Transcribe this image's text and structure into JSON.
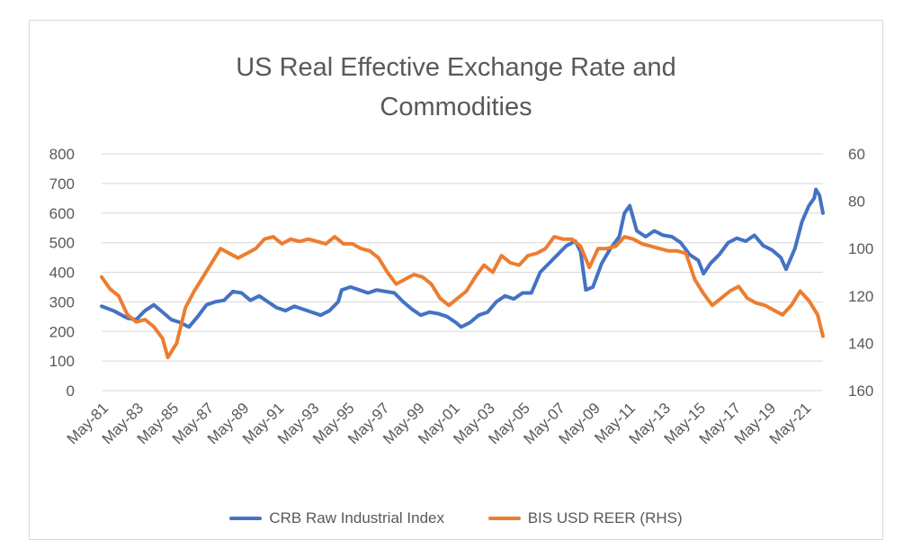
{
  "chart_data": {
    "type": "line",
    "title_lines": [
      "US Real Effective Exchange Rate and",
      "Commodities"
    ],
    "x_tick_labels": [
      "May-81",
      "May-83",
      "May-85",
      "May-87",
      "May-89",
      "May-91",
      "May-93",
      "May-95",
      "May-97",
      "May-99",
      "May-01",
      "May-03",
      "May-05",
      "May-07",
      "May-09",
      "May-11",
      "May-13",
      "May-15",
      "May-17",
      "May-19",
      "May-21"
    ],
    "x_range": [
      1981.33,
      2022.4
    ],
    "y_left": {
      "ticks": [
        0,
        100,
        200,
        300,
        400,
        500,
        600,
        700,
        800
      ],
      "range": [
        0,
        800
      ]
    },
    "y_right": {
      "ticks": [
        60,
        80,
        100,
        120,
        140,
        160
      ],
      "range": [
        60,
        160
      ],
      "inverted": true
    },
    "series": [
      {
        "name": "CRB Raw Industrial Index",
        "color": "#4472c4",
        "axis": "left",
        "x": [
          1981.33,
          1982.0,
          1982.8,
          1983.3,
          1983.8,
          1984.3,
          1984.8,
          1985.3,
          1985.8,
          1986.3,
          1986.8,
          1987.3,
          1987.8,
          1988.3,
          1988.8,
          1989.3,
          1989.8,
          1990.3,
          1990.8,
          1991.3,
          1991.8,
          1992.3,
          1992.8,
          1993.3,
          1993.8,
          1994.3,
          1994.8,
          1995.0,
          1995.5,
          1996.0,
          1996.5,
          1997.0,
          1997.5,
          1998.0,
          1998.5,
          1999.0,
          1999.5,
          2000.0,
          2000.5,
          2001.0,
          2001.5,
          2001.8,
          2002.3,
          2002.8,
          2003.3,
          2003.8,
          2004.3,
          2004.8,
          2005.3,
          2005.8,
          2006.3,
          2006.8,
          2007.3,
          2007.8,
          2008.3,
          2008.6,
          2008.9,
          2009.3,
          2009.8,
          2010.3,
          2010.8,
          2011.1,
          2011.4,
          2011.8,
          2012.3,
          2012.8,
          2013.3,
          2013.8,
          2014.3,
          2014.8,
          2015.3,
          2015.6,
          2016.0,
          2016.5,
          2017.0,
          2017.5,
          2018.0,
          2018.5,
          2019.0,
          2019.5,
          2020.0,
          2020.3,
          2020.8,
          2021.2,
          2021.6,
          2021.9,
          2022.0,
          2022.2,
          2022.4
        ],
        "values": [
          285,
          270,
          245,
          240,
          270,
          290,
          265,
          240,
          230,
          215,
          250,
          290,
          300,
          305,
          335,
          330,
          305,
          320,
          300,
          280,
          270,
          285,
          275,
          265,
          255,
          270,
          300,
          340,
          350,
          340,
          330,
          340,
          335,
          330,
          300,
          275,
          255,
          265,
          260,
          250,
          230,
          215,
          230,
          255,
          265,
          300,
          320,
          310,
          330,
          330,
          400,
          430,
          460,
          490,
          505,
          470,
          340,
          350,
          430,
          480,
          520,
          600,
          625,
          540,
          520,
          540,
          525,
          520,
          500,
          460,
          440,
          395,
          430,
          460,
          500,
          515,
          505,
          525,
          490,
          475,
          450,
          410,
          480,
          570,
          625,
          650,
          680,
          660,
          600
        ]
      },
      {
        "name": "BIS USD REER (RHS)",
        "color": "#ed7d31",
        "axis": "right",
        "x": [
          1981.33,
          1981.8,
          1982.3,
          1982.8,
          1983.3,
          1983.8,
          1984.3,
          1984.8,
          1985.1,
          1985.6,
          1986.1,
          1986.6,
          1987.1,
          1987.6,
          1988.1,
          1988.6,
          1989.1,
          1989.6,
          1990.1,
          1990.6,
          1991.1,
          1991.6,
          1992.1,
          1992.6,
          1993.1,
          1993.6,
          1994.1,
          1994.6,
          1995.1,
          1995.6,
          1996.1,
          1996.6,
          1997.1,
          1997.6,
          1998.1,
          1998.6,
          1999.1,
          1999.6,
          2000.1,
          2000.6,
          2001.1,
          2001.6,
          2002.1,
          2002.6,
          2003.1,
          2003.6,
          2004.1,
          2004.6,
          2005.1,
          2005.6,
          2006.1,
          2006.6,
          2007.1,
          2007.6,
          2008.1,
          2008.6,
          2009.1,
          2009.6,
          2010.1,
          2010.6,
          2011.1,
          2011.6,
          2012.1,
          2012.6,
          2013.1,
          2013.6,
          2014.1,
          2014.6,
          2015.1,
          2015.6,
          2016.1,
          2016.6,
          2017.1,
          2017.6,
          2018.1,
          2018.6,
          2019.1,
          2019.6,
          2020.1,
          2020.6,
          2021.1,
          2021.6,
          2022.1,
          2022.4
        ],
        "values": [
          112,
          117,
          120,
          128,
          131,
          130,
          133,
          138,
          146,
          140,
          125,
          118,
          112,
          106,
          100,
          102,
          104,
          102,
          100,
          96,
          95,
          98,
          96,
          97,
          96,
          97,
          98,
          95,
          98,
          98,
          100,
          101,
          104,
          110,
          115,
          113,
          111,
          112,
          115,
          121,
          124,
          121,
          118,
          112,
          107,
          110,
          103,
          106,
          107,
          103,
          102,
          100,
          95,
          96,
          96,
          99,
          108,
          100,
          100,
          99,
          95,
          96,
          98,
          99,
          100,
          101,
          101,
          102,
          113,
          119,
          124,
          121,
          118,
          116,
          121,
          123,
          124,
          126,
          128,
          124,
          118,
          122,
          128,
          137
        ]
      }
    ],
    "grid": true,
    "legend_position": "bottom"
  }
}
